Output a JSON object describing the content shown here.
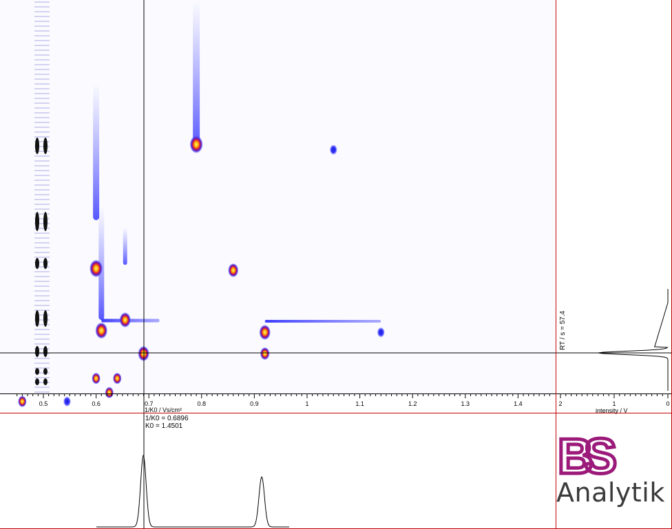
{
  "chart_data": {
    "type": "heatmap",
    "title": "",
    "xlabel": "1/K0 /  Vs/cm²",
    "ylabel": "",
    "xlim": [
      0.45,
      1.48
    ],
    "x_ticks": [
      0.5,
      0.6,
      0.7,
      0.8,
      0.9,
      1,
      1.1,
      1.2,
      1.3,
      1.4
    ],
    "x_tick_labels": [
      "0.5",
      "0.6",
      "0.7",
      "0.8",
      "0.9",
      "1",
      "1.1",
      "1.2",
      "1.3",
      "1.4"
    ],
    "cursor": {
      "inv_k0": 0.6896,
      "rt_s": 57.4,
      "inv_k0_label": "1/K0 = 0.6896",
      "k0_label": "K0 = 1.4501",
      "rt_label": "RT / s = 57.4"
    },
    "spots": [
      {
        "inv_k0": 0.79,
        "rt_s": 175,
        "intensity": 1.0
      },
      {
        "inv_k0": 1.05,
        "rt_s": 172,
        "intensity": 0.4
      },
      {
        "inv_k0": 0.6,
        "rt_s": 105,
        "intensity": 1.0
      },
      {
        "inv_k0": 0.86,
        "rt_s": 104,
        "intensity": 0.7
      },
      {
        "inv_k0": 0.655,
        "rt_s": 76,
        "intensity": 0.8
      },
      {
        "inv_k0": 0.61,
        "rt_s": 70,
        "intensity": 0.9
      },
      {
        "inv_k0": 0.92,
        "rt_s": 69,
        "intensity": 0.8
      },
      {
        "inv_k0": 1.14,
        "rt_s": 69,
        "intensity": 0.4
      },
      {
        "inv_k0": 0.69,
        "rt_s": 57,
        "intensity": 0.8
      },
      {
        "inv_k0": 0.92,
        "rt_s": 57,
        "intensity": 0.6
      },
      {
        "inv_k0": 0.6,
        "rt_s": 43,
        "intensity": 0.5
      },
      {
        "inv_k0": 0.64,
        "rt_s": 43,
        "intensity": 0.5
      },
      {
        "inv_k0": 0.625,
        "rt_s": 35,
        "intensity": 0.5
      },
      {
        "inv_k0": 0.46,
        "rt_s": 30,
        "intensity": 0.5
      },
      {
        "inv_k0": 0.545,
        "rt_s": 30,
        "intensity": 0.4
      }
    ],
    "bottom_trace": {
      "label": "",
      "peaks": [
        {
          "inv_k0": 0.6896,
          "height": 1.0
        },
        {
          "inv_k0": 0.914,
          "height": 0.7
        }
      ]
    },
    "right_trace": {
      "xlabel": "intensity / V",
      "x_tick_labels": [
        "2",
        "1",
        "0"
      ],
      "xlim": [
        2,
        0
      ],
      "peaks": [
        {
          "rt_s": 57.4,
          "intensity": 1.3
        }
      ]
    },
    "colors": {
      "frame": "#c00000",
      "low": "#3a3aff",
      "mid": "#c0104a",
      "high": "#ffee00",
      "trace": "#000000"
    }
  },
  "logo": {
    "mark": "BS",
    "text": "Analytik",
    "mark_color": "#9b1a7a"
  }
}
